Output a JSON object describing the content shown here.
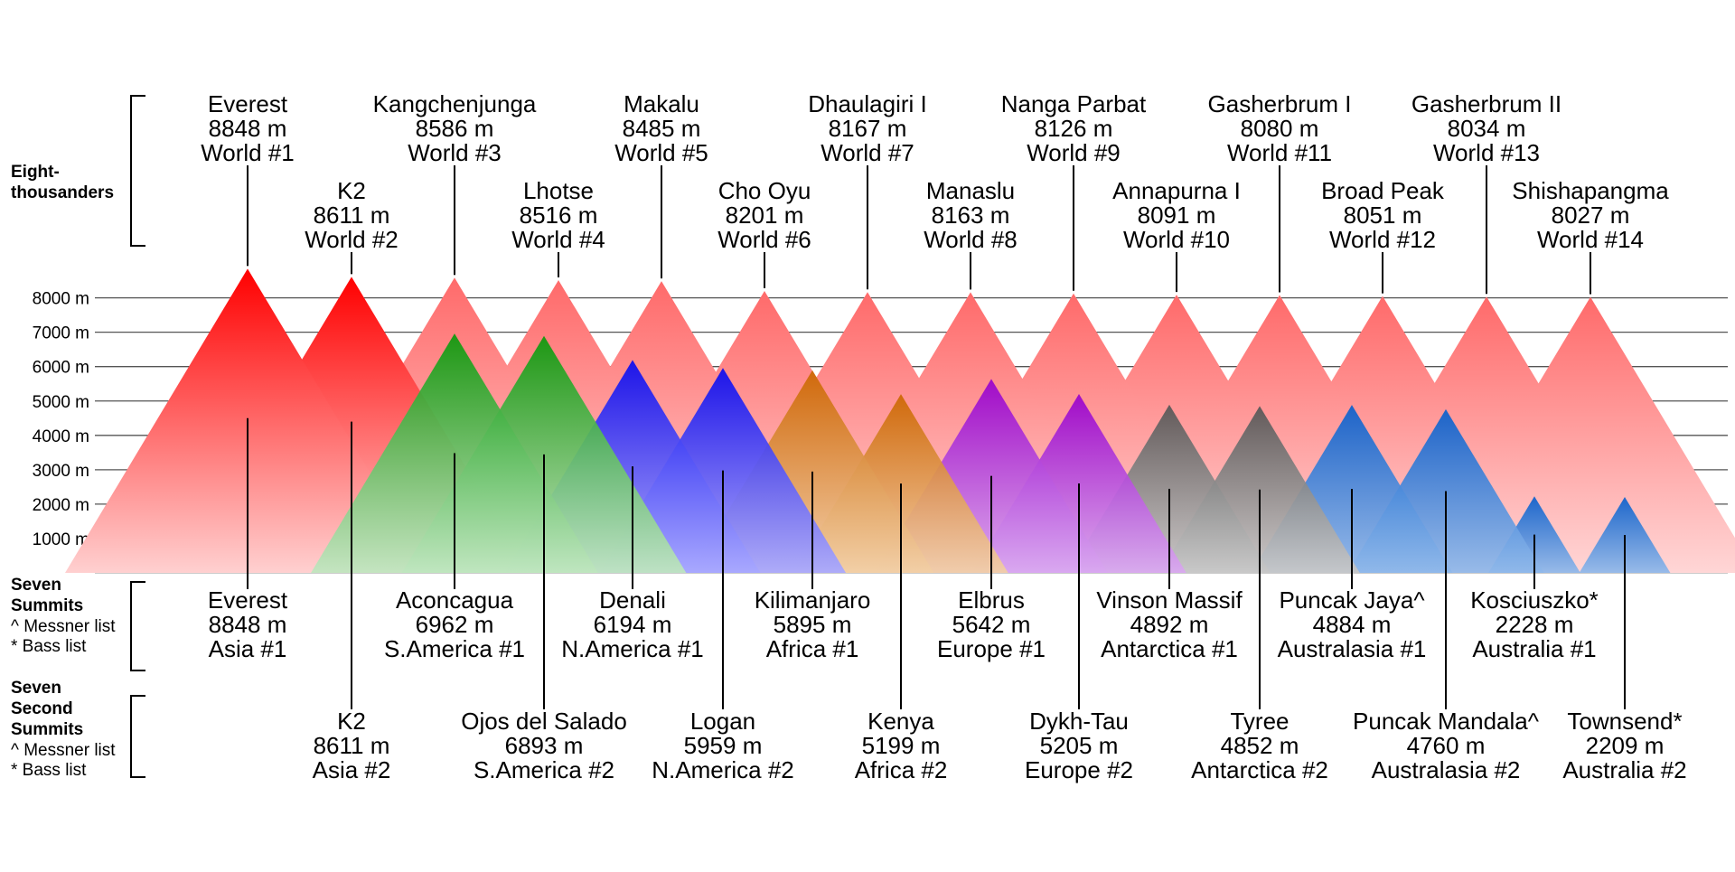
{
  "axis": {
    "unit": "m",
    "ticks": [
      "1000 m",
      "2000 m",
      "3000 m",
      "4000 m",
      "5000 m",
      "6000 m",
      "7000 m",
      "8000 m"
    ],
    "tick_values": [
      1000,
      2000,
      3000,
      4000,
      5000,
      6000,
      7000,
      8000
    ]
  },
  "groups": {
    "eight_thousanders": {
      "title_line1": "Eight-",
      "title_line2": "thousanders"
    },
    "seven_summits": {
      "title_line1": "Seven",
      "title_line2": "Summits",
      "note1": "^  Messner list",
      "note2": "*  Bass list"
    },
    "seven_second_summits": {
      "title_line1": "Seven",
      "title_line2": "Second",
      "title_line3": "Summits",
      "note1": "^  Messner list",
      "note2": "*  Bass list"
    }
  },
  "colors": {
    "eight_thousanders": "#ff0000",
    "south_america": "#0a990a",
    "north_america": "#0000ff",
    "africa": "#d26b0a",
    "europe": "#9900cc",
    "antarctica": "#666666",
    "australasia": "#0a66cc"
  },
  "eight_thousanders": [
    {
      "name": "Everest",
      "height": 8848,
      "height_label": "8848 m",
      "rank": "World #1"
    },
    {
      "name": "K2",
      "height": 8611,
      "height_label": "8611 m",
      "rank": "World #2"
    },
    {
      "name": "Kangchenjunga",
      "height": 8586,
      "height_label": "8586 m",
      "rank": "World #3"
    },
    {
      "name": "Lhotse",
      "height": 8516,
      "height_label": "8516 m",
      "rank": "World #4"
    },
    {
      "name": "Makalu",
      "height": 8485,
      "height_label": "8485 m",
      "rank": "World #5"
    },
    {
      "name": "Cho Oyu",
      "height": 8201,
      "height_label": "8201 m",
      "rank": "World #6"
    },
    {
      "name": "Dhaulagiri I",
      "height": 8167,
      "height_label": "8167 m",
      "rank": "World #7"
    },
    {
      "name": "Manaslu",
      "height": 8163,
      "height_label": "8163 m",
      "rank": "World #8"
    },
    {
      "name": "Nanga Parbat",
      "height": 8126,
      "height_label": "8126 m",
      "rank": "World #9"
    },
    {
      "name": "Annapurna I",
      "height": 8091,
      "height_label": "8091 m",
      "rank": "World #10"
    },
    {
      "name": "Gasherbrum I",
      "height": 8080,
      "height_label": "8080 m",
      "rank": "World #11"
    },
    {
      "name": "Broad Peak",
      "height": 8051,
      "height_label": "8051 m",
      "rank": "World #12"
    },
    {
      "name": "Gasherbrum II",
      "height": 8034,
      "height_label": "8034 m",
      "rank": "World #13"
    },
    {
      "name": "Shishapangma",
      "height": 8027,
      "height_label": "8027 m",
      "rank": "World #14"
    }
  ],
  "seven_summits": [
    {
      "name": "Everest",
      "height": 8848,
      "height_label": "8848 m",
      "rank": "Asia #1",
      "color_key": "eight_thousanders",
      "shared_peak": 0
    },
    {
      "name": "Aconcagua",
      "height": 6962,
      "height_label": "6962 m",
      "rank": "S.America #1",
      "color_key": "south_america"
    },
    {
      "name": "Denali",
      "height": 6194,
      "height_label": "6194 m",
      "rank": "N.America #1",
      "color_key": "north_america"
    },
    {
      "name": "Kilimanjaro",
      "height": 5895,
      "height_label": "5895 m",
      "rank": "Africa #1",
      "color_key": "africa"
    },
    {
      "name": "Elbrus",
      "height": 5642,
      "height_label": "5642 m",
      "rank": "Europe #1",
      "color_key": "europe"
    },
    {
      "name": "Vinson Massif",
      "height": 4892,
      "height_label": "4892 m",
      "rank": "Antarctica #1",
      "color_key": "antarctica"
    },
    {
      "name": "Puncak Jaya^",
      "height": 4884,
      "height_label": "4884 m",
      "rank": "Australasia #1",
      "color_key": "australasia"
    },
    {
      "name": "Kosciuszko*",
      "height": 2228,
      "height_label": "2228 m",
      "rank": "Australia #1",
      "color_key": "australasia"
    }
  ],
  "seven_second_summits": [
    {
      "name": "K2",
      "height": 8611,
      "height_label": "8611 m",
      "rank": "Asia #2",
      "color_key": "eight_thousanders",
      "shared_peak": 1
    },
    {
      "name": "Ojos del Salado",
      "height": 6893,
      "height_label": "6893 m",
      "rank": "S.America #2",
      "color_key": "south_america"
    },
    {
      "name": "Logan",
      "height": 5959,
      "height_label": "5959 m",
      "rank": "N.America #2",
      "color_key": "north_america"
    },
    {
      "name": "Kenya",
      "height": 5199,
      "height_label": "5199 m",
      "rank": "Africa #2",
      "color_key": "africa"
    },
    {
      "name": "Dykh-Tau",
      "height": 5205,
      "height_label": "5205 m",
      "rank": "Europe #2",
      "color_key": "europe"
    },
    {
      "name": "Tyree",
      "height": 4852,
      "height_label": "4852 m",
      "rank": "Antarctica #2",
      "color_key": "antarctica"
    },
    {
      "name": "Puncak Mandala^",
      "height": 4760,
      "height_label": "4760 m",
      "rank": "Australasia #2",
      "color_key": "australasia"
    },
    {
      "name": "Townsend*",
      "height": 2209,
      "height_label": "2209 m",
      "rank": "Australia #2",
      "color_key": "australasia"
    }
  ]
}
